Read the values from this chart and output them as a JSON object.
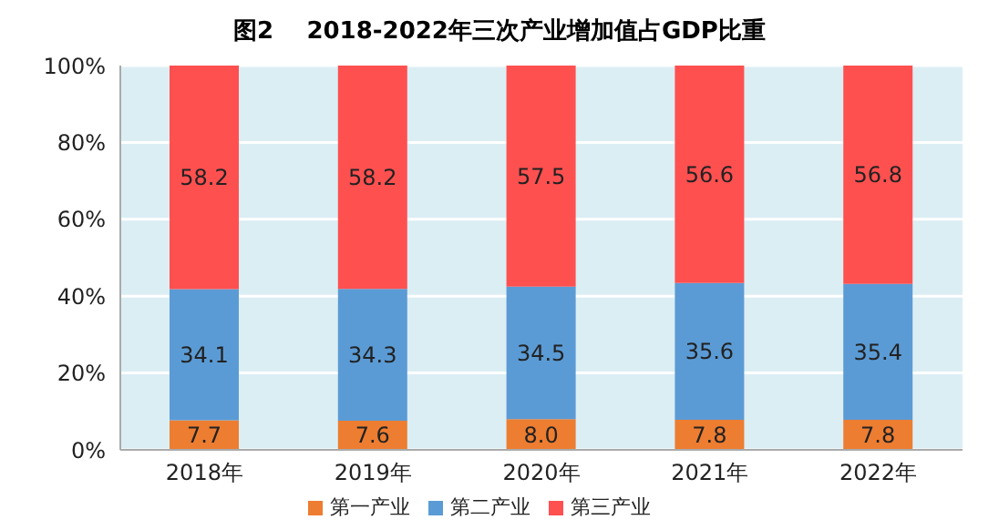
{
  "chart_data": {
    "type": "bar",
    "title": "图2    2018-2022年三次产业增加值占GDP比重",
    "categories": [
      "2018年",
      "2019年",
      "2020年",
      "2021年",
      "2022年"
    ],
    "stacked": true,
    "series": [
      {
        "name": "第一产业",
        "color": "#ed7d31",
        "values": [
          7.7,
          7.6,
          8.0,
          7.8,
          7.8
        ],
        "value_labels": [
          "7.7",
          "7.6",
          "8.0",
          "7.8",
          "7.8"
        ]
      },
      {
        "name": "第二产业",
        "color": "#5b9bd5",
        "values": [
          34.1,
          34.3,
          34.5,
          35.6,
          35.4
        ],
        "value_labels": [
          "34.1",
          "34.3",
          "34.5",
          "35.6",
          "35.4"
        ]
      },
      {
        "name": "第三产业",
        "color": "#ff5050",
        "values": [
          58.2,
          58.2,
          57.5,
          56.6,
          56.8
        ],
        "value_labels": [
          "58.2",
          "58.2",
          "57.5",
          "56.6",
          "56.8"
        ]
      }
    ],
    "ylim": [
      0,
      100
    ],
    "yticks": [
      {
        "value": 0,
        "label": "0%"
      },
      {
        "value": 20,
        "label": "20%"
      },
      {
        "value": 40,
        "label": "40%"
      },
      {
        "value": 60,
        "label": "60%"
      },
      {
        "value": 80,
        "label": "80%"
      },
      {
        "value": 100,
        "label": "100%"
      }
    ],
    "grid": "y",
    "legend": "bottom"
  }
}
